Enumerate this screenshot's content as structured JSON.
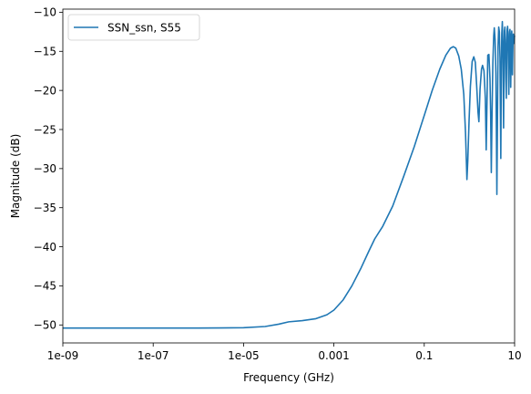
{
  "chart_data": {
    "type": "line",
    "title": "",
    "xlabel": "Frequency (GHz)",
    "ylabel": "Magnitude (dB)",
    "x_scale": "log",
    "xlim": [
      1e-09,
      10
    ],
    "ylim": [
      -52.3,
      -9.6
    ],
    "x_ticks": [
      1e-09,
      1e-07,
      1e-05,
      0.001,
      0.1,
      10
    ],
    "x_tick_labels": [
      "1e-09",
      "1e-07",
      "1e-05",
      "0.001",
      "0.1",
      "10"
    ],
    "y_ticks": [
      -50,
      -45,
      -40,
      -35,
      -30,
      -25,
      -20,
      -15,
      -10
    ],
    "y_tick_labels": [
      "−50",
      "−45",
      "−40",
      "−35",
      "−30",
      "−25",
      "−20",
      "−15",
      "−10"
    ],
    "grid": false,
    "legend_position": "top-left",
    "series": [
      {
        "name": "SSN_ssn, S55",
        "color": "#1f77b4",
        "points": [
          [
            1e-09,
            -50.4
          ],
          [
            1e-08,
            -50.4
          ],
          [
            1e-07,
            -50.4
          ],
          [
            1e-06,
            -50.4
          ],
          [
            3e-06,
            -50.38
          ],
          [
            1e-05,
            -50.35
          ],
          [
            3e-05,
            -50.2
          ],
          [
            6e-05,
            -49.9
          ],
          [
            0.0001,
            -49.6
          ],
          [
            0.0002,
            -49.45
          ],
          [
            0.0004,
            -49.2
          ],
          [
            0.0007,
            -48.7
          ],
          [
            0.001,
            -48.1
          ],
          [
            0.0016,
            -46.8
          ],
          [
            0.0025,
            -45.0
          ],
          [
            0.004,
            -42.7
          ],
          [
            0.006,
            -40.5
          ],
          [
            0.008,
            -39.0
          ],
          [
            0.012,
            -37.4
          ],
          [
            0.02,
            -34.8
          ],
          [
            0.035,
            -31.0
          ],
          [
            0.06,
            -27.2
          ],
          [
            0.1,
            -23.2
          ],
          [
            0.15,
            -20.0
          ],
          [
            0.22,
            -17.3
          ],
          [
            0.3,
            -15.5
          ],
          [
            0.38,
            -14.6
          ],
          [
            0.44,
            -14.4
          ],
          [
            0.5,
            -14.6
          ],
          [
            0.58,
            -15.6
          ],
          [
            0.66,
            -17.3
          ],
          [
            0.75,
            -20.5
          ],
          [
            0.82,
            -25.5
          ],
          [
            0.88,
            -31.4
          ],
          [
            0.92,
            -29.0
          ],
          [
            0.98,
            -24.0
          ],
          [
            1.05,
            -19.5
          ],
          [
            1.15,
            -16.3
          ],
          [
            1.25,
            -15.7
          ],
          [
            1.35,
            -16.4
          ],
          [
            1.45,
            -19.5
          ],
          [
            1.55,
            -22.8
          ],
          [
            1.62,
            -24.0
          ],
          [
            1.72,
            -19.8
          ],
          [
            1.85,
            -17.3
          ],
          [
            1.95,
            -16.8
          ],
          [
            2.1,
            -17.5
          ],
          [
            2.25,
            -21.0
          ],
          [
            2.35,
            -27.6
          ],
          [
            2.45,
            -21.5
          ],
          [
            2.55,
            -15.5
          ],
          [
            2.7,
            -15.4
          ],
          [
            2.85,
            -18.5
          ],
          [
            2.95,
            -23.0
          ],
          [
            3.05,
            -30.5
          ],
          [
            3.15,
            -23.8
          ],
          [
            3.3,
            -16.5
          ],
          [
            3.45,
            -13.0
          ],
          [
            3.55,
            -12.0
          ],
          [
            3.7,
            -13.5
          ],
          [
            3.85,
            -17.8
          ],
          [
            3.95,
            -25.0
          ],
          [
            4.05,
            -33.3
          ],
          [
            4.15,
            -25.5
          ],
          [
            4.3,
            -14.4
          ],
          [
            4.45,
            -11.9
          ],
          [
            4.6,
            -12.5
          ],
          [
            4.75,
            -15.8
          ],
          [
            4.85,
            -22.5
          ],
          [
            4.95,
            -28.7
          ],
          [
            5.05,
            -20.0
          ],
          [
            5.2,
            -12.8
          ],
          [
            5.35,
            -11.2
          ],
          [
            5.5,
            -13.8
          ],
          [
            5.6,
            -19.0
          ],
          [
            5.7,
            -24.8
          ],
          [
            5.8,
            -19.0
          ],
          [
            5.95,
            -12.4
          ],
          [
            6.1,
            -11.9
          ],
          [
            6.25,
            -13.5
          ],
          [
            6.4,
            -18.5
          ],
          [
            6.55,
            -21.0
          ],
          [
            6.7,
            -15.0
          ],
          [
            6.85,
            -12.2
          ],
          [
            7.0,
            -11.8
          ],
          [
            7.15,
            -12.8
          ],
          [
            7.3,
            -17.0
          ],
          [
            7.45,
            -20.5
          ],
          [
            7.6,
            -15.2
          ],
          [
            7.75,
            -12.5
          ],
          [
            7.9,
            -12.2
          ],
          [
            8.05,
            -14.2
          ],
          [
            8.2,
            -19.6
          ],
          [
            8.35,
            -16.3
          ],
          [
            8.5,
            -13.0
          ],
          [
            8.65,
            -12.4
          ],
          [
            8.8,
            -13.6
          ],
          [
            8.95,
            -18.0
          ],
          [
            9.1,
            -15.5
          ],
          [
            9.25,
            -13.2
          ],
          [
            9.4,
            -12.8
          ],
          [
            9.55,
            -14.0
          ],
          [
            9.7,
            -13.6
          ],
          [
            9.85,
            -13.2
          ],
          [
            10.0,
            -13.0
          ]
        ]
      }
    ]
  }
}
